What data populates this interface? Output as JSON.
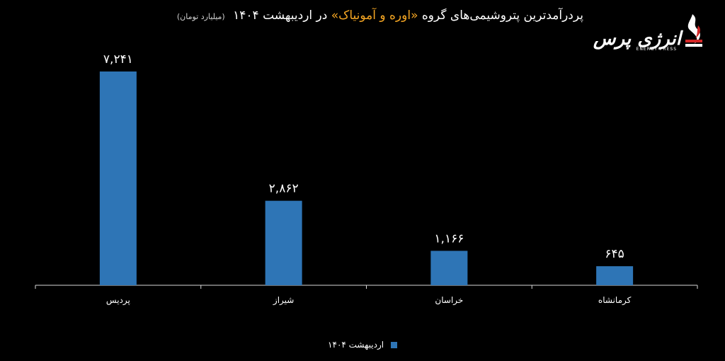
{
  "title": {
    "part1": "پردرآمدترین پتروشیمی‌های گروه",
    "highlight": "«اوره و آمونیاک»",
    "part2": "در اردیبهشت ۱۴۰۴",
    "unit": "(میلیارد تومان)"
  },
  "logo": {
    "text": "انرژی پرس",
    "subtext": "ENERGY PRESS"
  },
  "colors": {
    "background": "#000000",
    "bar": "#2e75b6",
    "highlight": "#f5a623",
    "axis": "#d9d9d9",
    "text": "#ffffff"
  },
  "chart_data": {
    "type": "bar",
    "categories": [
      "پردیس",
      "شیراز",
      "خراسان",
      "کرمانشاه"
    ],
    "series": [
      {
        "name": "اردیبهشت ۱۴۰۴",
        "values": [
          7241,
          2862,
          1166,
          645
        ]
      }
    ],
    "data_labels": [
      "۷,۲۴۱",
      "۲,۸۶۲",
      "۱,۱۶۶",
      "۶۴۵"
    ],
    "ylim": [
      0,
      7241
    ],
    "grid": false,
    "legend_position": "bottom"
  },
  "legend": {
    "label": "اردیبهشت ۱۴۰۴"
  }
}
